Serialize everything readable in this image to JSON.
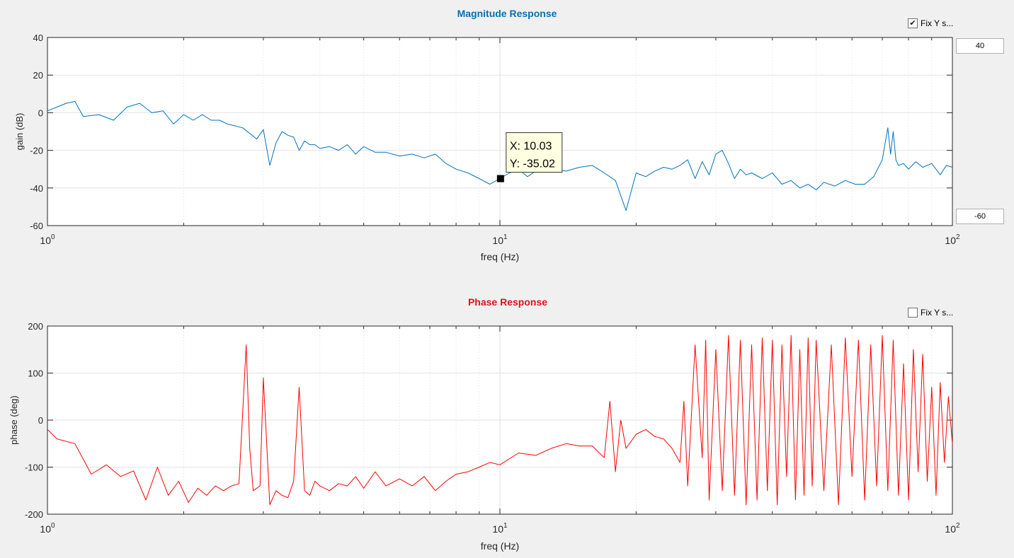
{
  "magnitude": {
    "title": "Magnitude Response",
    "title_color": "#0a6fae",
    "line_color": "#0072bd",
    "fix_y_label": "Fix Y s...",
    "fix_y_checked": true,
    "y_max_value": "40",
    "y_min_value": "-60",
    "datatip": {
      "x_text": "X: 10.03",
      "y_text": "Y: -35.02",
      "x": 10.03,
      "y": -35.02
    }
  },
  "phase": {
    "title": "Phase Response",
    "title_color": "#e0101a",
    "line_color": "#ff0000",
    "fix_y_label": "Fix Y s...",
    "fix_y_checked": false
  },
  "chart_data": [
    {
      "type": "line",
      "title": "Magnitude Response",
      "xlabel": "freq (Hz)",
      "ylabel": "gain (dB)",
      "xscale": "log",
      "xlim": [
        1,
        100
      ],
      "ylim": [
        -60,
        40
      ],
      "xticks": [
        1,
        10,
        100
      ],
      "xtick_labels": [
        {
          "base": "10",
          "exp": "0"
        },
        {
          "base": "10",
          "exp": "1"
        },
        {
          "base": "10",
          "exp": "2"
        }
      ],
      "yticks": [
        40,
        20,
        0,
        -20,
        -40,
        -60
      ],
      "grid": true,
      "series": [
        {
          "x": [
            1,
            1.05,
            1.1,
            1.15,
            1.2,
            1.3,
            1.4,
            1.5,
            1.6,
            1.7,
            1.8,
            1.9,
            2.0,
            2.1,
            2.2,
            2.3,
            2.4,
            2.5,
            2.6,
            2.7,
            2.8,
            2.9,
            3.0,
            3.1,
            3.2,
            3.3,
            3.4,
            3.5,
            3.6,
            3.7,
            3.8,
            3.9,
            4.0,
            4.2,
            4.4,
            4.6,
            4.8,
            5.0,
            5.3,
            5.6,
            6.0,
            6.4,
            6.8,
            7.2,
            7.6,
            8.0,
            8.5,
            9.0,
            9.5,
            10.0,
            10.5,
            11,
            11.5,
            12,
            13,
            14,
            15,
            16,
            17,
            18,
            19,
            20,
            21,
            22,
            23,
            24,
            25,
            26,
            27,
            28,
            29,
            30,
            31,
            32,
            33,
            34,
            35,
            36,
            38,
            40,
            42,
            44,
            46,
            48,
            50,
            52,
            55,
            58,
            61,
            64,
            67,
            70,
            72,
            73,
            74,
            75,
            76,
            78,
            80,
            83,
            86,
            90,
            94,
            97,
            100
          ],
          "y": [
            1,
            3,
            5,
            6,
            -2,
            -1,
            -4,
            3,
            5,
            0,
            1,
            -6,
            -1,
            -4,
            -1,
            -4,
            -4,
            -6,
            -7,
            -8,
            -11,
            -14,
            -9,
            -28,
            -16,
            -10,
            -12,
            -13,
            -20,
            -15,
            -17,
            -17,
            -19,
            -18,
            -20,
            -17,
            -22,
            -18,
            -21,
            -21,
            -23,
            -22,
            -24,
            -22,
            -27,
            -30,
            -32,
            -35,
            -38,
            -35,
            -32,
            -30,
            -34,
            -31,
            -30,
            -31,
            -29,
            -28,
            -32,
            -36,
            -52,
            -32,
            -34,
            -31,
            -29,
            -30,
            -28,
            -25,
            -35,
            -26,
            -33,
            -22,
            -20,
            -27,
            -35,
            -30,
            -33,
            -32,
            -35,
            -32,
            -38,
            -36,
            -40,
            -38,
            -41,
            -37,
            -39,
            -36,
            -38,
            -38,
            -34,
            -25,
            -8,
            -22,
            -10,
            -25,
            -28,
            -27,
            -30,
            -26,
            -29,
            -27,
            -33,
            -28,
            -29
          ]
        }
      ]
    },
    {
      "type": "line",
      "title": "Phase Response",
      "xlabel": "freq (Hz)",
      "ylabel": "phase (deg)",
      "xscale": "log",
      "xlim": [
        1,
        100
      ],
      "ylim": [
        -200,
        200
      ],
      "xticks": [
        1,
        10,
        100
      ],
      "xtick_labels": [
        {
          "base": "10",
          "exp": "0"
        },
        {
          "base": "10",
          "exp": "1"
        },
        {
          "base": "10",
          "exp": "2"
        }
      ],
      "yticks": [
        200,
        100,
        0,
        -100,
        -200
      ],
      "grid": true,
      "series": [
        {
          "x": [
            1,
            1.05,
            1.15,
            1.25,
            1.35,
            1.45,
            1.55,
            1.65,
            1.75,
            1.85,
            1.95,
            2.05,
            2.15,
            2.25,
            2.35,
            2.45,
            2.55,
            2.65,
            2.75,
            2.8,
            2.85,
            2.95,
            3.0,
            3.1,
            3.2,
            3.3,
            3.4,
            3.5,
            3.6,
            3.7,
            3.8,
            3.9,
            4.0,
            4.2,
            4.4,
            4.6,
            4.8,
            5.0,
            5.3,
            5.6,
            6.0,
            6.4,
            6.8,
            7.2,
            7.6,
            8.0,
            8.5,
            9.0,
            9.5,
            10,
            11,
            12,
            13,
            14,
            15,
            16,
            17,
            17.5,
            18,
            18.5,
            19,
            20,
            21,
            22,
            23,
            24,
            25,
            25.5,
            26,
            27,
            28,
            28.5,
            29,
            30,
            31,
            32,
            33,
            34,
            35,
            36,
            37,
            38,
            39,
            40,
            41,
            42,
            43,
            44,
            45,
            46,
            47,
            48,
            49,
            50,
            52,
            54,
            56,
            58,
            60,
            62,
            64,
            66,
            68,
            70,
            72,
            74,
            76,
            78,
            80,
            82,
            84,
            86,
            88,
            90,
            92,
            94,
            96,
            98,
            100
          ],
          "y": [
            -20,
            -40,
            -50,
            -115,
            -95,
            -120,
            -108,
            -170,
            -100,
            -160,
            -130,
            -175,
            -145,
            -160,
            -140,
            -150,
            -140,
            -135,
            160,
            -60,
            -150,
            -140,
            90,
            -180,
            -150,
            -160,
            -165,
            -130,
            70,
            -150,
            -160,
            -130,
            -140,
            -150,
            -135,
            -140,
            -120,
            -145,
            -110,
            -140,
            -125,
            -140,
            -120,
            -150,
            -130,
            -115,
            -110,
            -100,
            -90,
            -95,
            -70,
            -75,
            -60,
            -50,
            -55,
            -55,
            -80,
            40,
            -110,
            0,
            -60,
            -30,
            -20,
            -35,
            -40,
            -60,
            -90,
            40,
            -140,
            160,
            -80,
            170,
            -170,
            150,
            -150,
            180,
            -160,
            170,
            -180,
            160,
            -170,
            175,
            -150,
            170,
            -180,
            160,
            -120,
            180,
            -170,
            150,
            -160,
            175,
            -140,
            170,
            -150,
            160,
            -180,
            175,
            -120,
            170,
            -170,
            160,
            -140,
            180,
            -150,
            170,
            -160,
            120,
            -170,
            150,
            -110,
            140,
            -130,
            70,
            -160,
            80,
            -90,
            50,
            -50
          ]
        }
      ]
    }
  ]
}
